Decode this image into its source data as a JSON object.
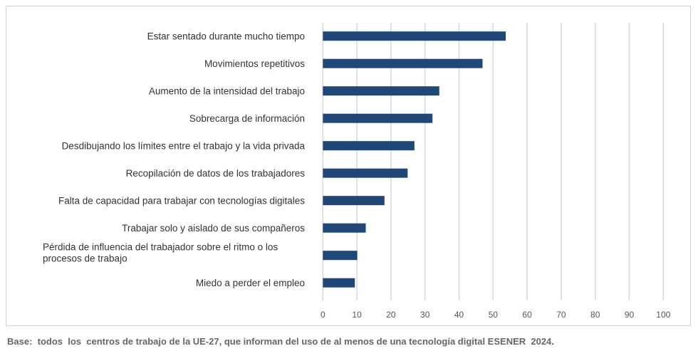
{
  "chart_data": {
    "type": "bar",
    "orientation": "horizontal",
    "categories": [
      "Estar sentado durante mucho tiempo",
      "Movimientos repetitivos",
      "Aumento de la intensidad del trabajo",
      "Sobrecarga de información",
      "Desdibujando los límites entre el trabajo y la vida privada",
      "Recopilación de datos de los trabajadores",
      "Falta de capacidad para trabajar con tecnologías digitales",
      "Trabajar solo y aislado de sus compañeros",
      "Pérdida de influencia del trabajador sobre el ritmo o los procesos de trabajo",
      "Miedo a perder el empleo"
    ],
    "category_lines": [
      [
        "Estar sentado durante mucho tiempo"
      ],
      [
        "Movimientos repetitivos"
      ],
      [
        "Aumento de la intensidad del trabajo"
      ],
      [
        "Sobrecarga de información"
      ],
      [
        "Desdibujando los límites entre el trabajo y la vida privada"
      ],
      [
        "Recopilación de datos de los trabajadores"
      ],
      [
        "Falta de capacidad para trabajar con tecnologías digitales"
      ],
      [
        "Trabajar solo y aislado de sus compañeros"
      ],
      [
        "Pérdida de influencia del trabajador sobre el ritmo o los",
        "procesos de trabajo"
      ],
      [
        "Miedo a perder el empleo"
      ]
    ],
    "values": [
      53.7,
      46.9,
      34.2,
      32.2,
      26.9,
      24.9,
      18.1,
      12.6,
      10.1,
      9.4
    ],
    "xlim": [
      0,
      100
    ],
    "xticks": [
      0,
      10,
      20,
      30,
      40,
      50,
      60,
      70,
      80,
      90,
      100
    ],
    "grid": true,
    "bar_color": "#1f4778",
    "grid_color": "#d9d9d9"
  },
  "footer": "Base:  todos  los  centros de trabajo de la UE-27, que informan del uso de al menos de una tecnología digital ESENER  2024."
}
